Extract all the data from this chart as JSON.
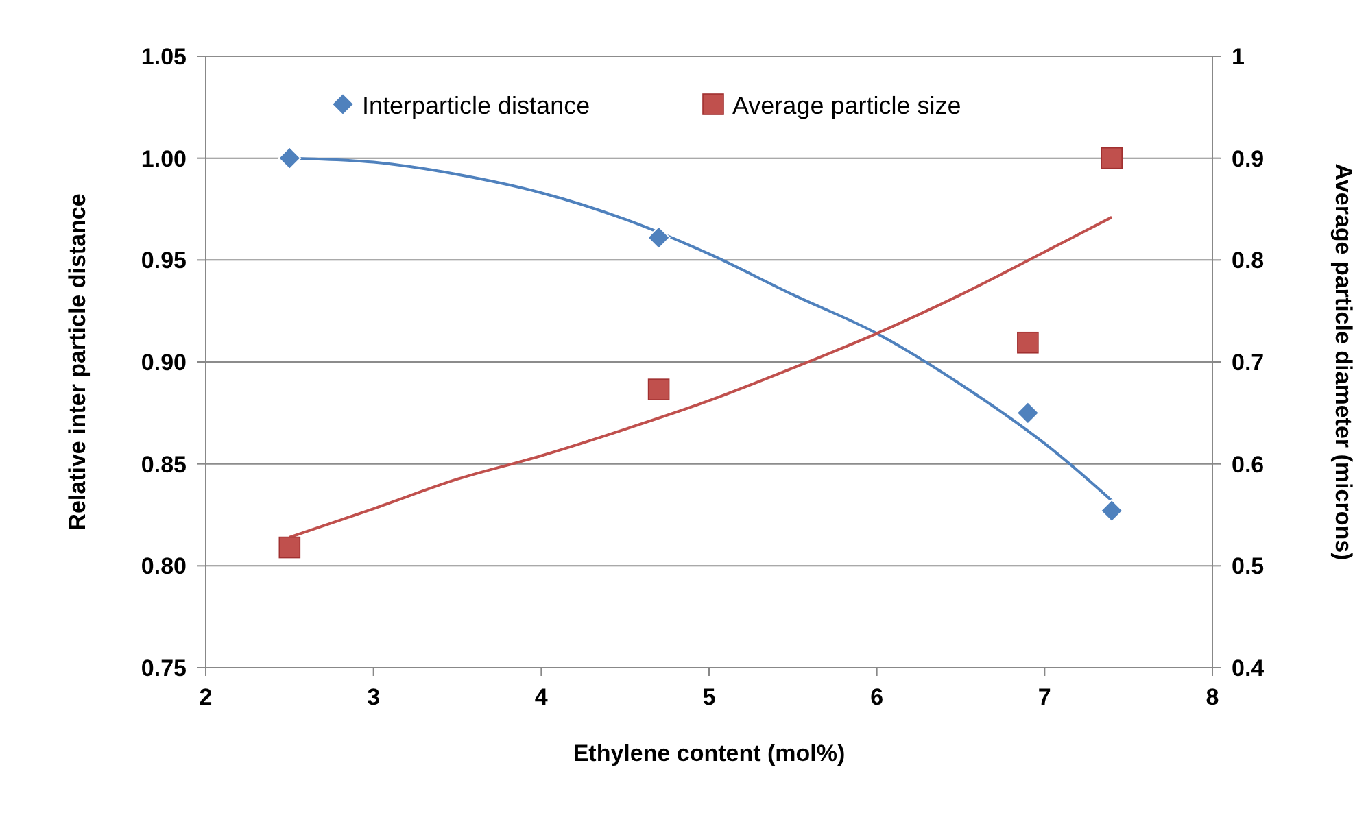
{
  "chart_data": {
    "type": "scatter",
    "xlabel": "Ethylene content (mol%)",
    "ylabel": "Relative inter particle distance",
    "y2label": "Average particle diameter (microns)",
    "xlim": [
      2,
      8
    ],
    "xticks": [
      2,
      3,
      4,
      5,
      6,
      7,
      8
    ],
    "ylim": [
      0.75,
      1.05
    ],
    "yticks": [
      {
        "value": 0.75,
        "label": "0.75"
      },
      {
        "value": 0.8,
        "label": "0.80"
      },
      {
        "value": 0.85,
        "label": "0.85"
      },
      {
        "value": 0.9,
        "label": "0.90"
      },
      {
        "value": 0.95,
        "label": "0.95"
      },
      {
        "value": 1.0,
        "label": "1.00"
      },
      {
        "value": 1.05,
        "label": "1.05"
      }
    ],
    "y2lim": [
      0.4,
      1
    ],
    "y2ticks": [
      0.4,
      0.5,
      0.6,
      0.7,
      0.8,
      0.9,
      1
    ],
    "grid": "y",
    "legend": "top",
    "series": [
      {
        "name": "Interparticle distance",
        "marker": "diamond",
        "color": "#4f81bd",
        "x": [
          2.5,
          4.7,
          6.9,
          7.4
        ],
        "values": [
          1.0,
          0.961,
          0.875,
          0.827
        ]
      },
      {
        "name": "Average particle size",
        "marker": "square",
        "axis": "y2",
        "color": "#c0504d",
        "x": [
          2.5,
          4.7,
          6.9,
          7.4
        ],
        "values": [
          0.518,
          0.673,
          0.719,
          0.9
        ]
      },
      {
        "type": "line",
        "marker": "none",
        "color": "#4f81bd",
        "x": [
          2.5,
          3,
          3.5,
          4,
          4.5,
          5,
          5.5,
          6,
          6.5,
          7,
          7.4
        ],
        "values": [
          1.0,
          0.998,
          0.992,
          0.983,
          0.97,
          0.953,
          0.933,
          0.914,
          0.889,
          0.86,
          0.832
        ]
      },
      {
        "type": "line",
        "marker": "none",
        "axis": "y2",
        "color": "#c0504d",
        "x": [
          2.5,
          3,
          3.5,
          4,
          4.5,
          5,
          5.5,
          6,
          6.5,
          7,
          7.4
        ],
        "values": [
          0.528,
          0.556,
          0.585,
          0.608,
          0.634,
          0.662,
          0.694,
          0.728,
          0.766,
          0.808,
          0.842
        ]
      }
    ]
  }
}
